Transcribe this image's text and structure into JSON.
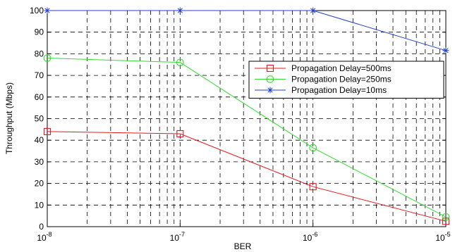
{
  "chart_data": {
    "type": "line",
    "xscale": "log",
    "xlabel": "BER",
    "ylabel": "Throughput (Mbps)",
    "xlim": [
      1e-08,
      1e-05
    ],
    "ylim": [
      0,
      100
    ],
    "grid": true,
    "legend_position": "top-right (inside)",
    "x_ticks": [
      {
        "value": 1e-08,
        "base": "10",
        "exp": "-8"
      },
      {
        "value": 1e-07,
        "base": "10",
        "exp": "-7"
      },
      {
        "value": 1e-06,
        "base": "10",
        "exp": "-6"
      },
      {
        "value": 1e-05,
        "base": "10",
        "exp": "-5"
      }
    ],
    "y_ticks": [
      0,
      10,
      20,
      30,
      40,
      50,
      60,
      70,
      80,
      90,
      100
    ],
    "series": [
      {
        "name": "Propagation Delay=500ms",
        "color": "#e41a1c",
        "marker": "square",
        "x": [
          1e-08,
          1e-07,
          1e-06,
          1e-05
        ],
        "y": [
          44,
          43,
          18.5,
          2.5
        ]
      },
      {
        "name": "Propagation Delay=250ms",
        "color": "#33dd33",
        "marker": "circle",
        "x": [
          1e-08,
          1e-07,
          1e-06,
          1e-05
        ],
        "y": [
          78,
          76,
          36.5,
          4.5
        ]
      },
      {
        "name": "Propagation Delay=10ms",
        "color": "#1f3fd6",
        "marker": "star",
        "x": [
          1e-08,
          1e-07,
          1e-06,
          1e-05
        ],
        "y": [
          100,
          100,
          100,
          81.5
        ]
      }
    ]
  }
}
